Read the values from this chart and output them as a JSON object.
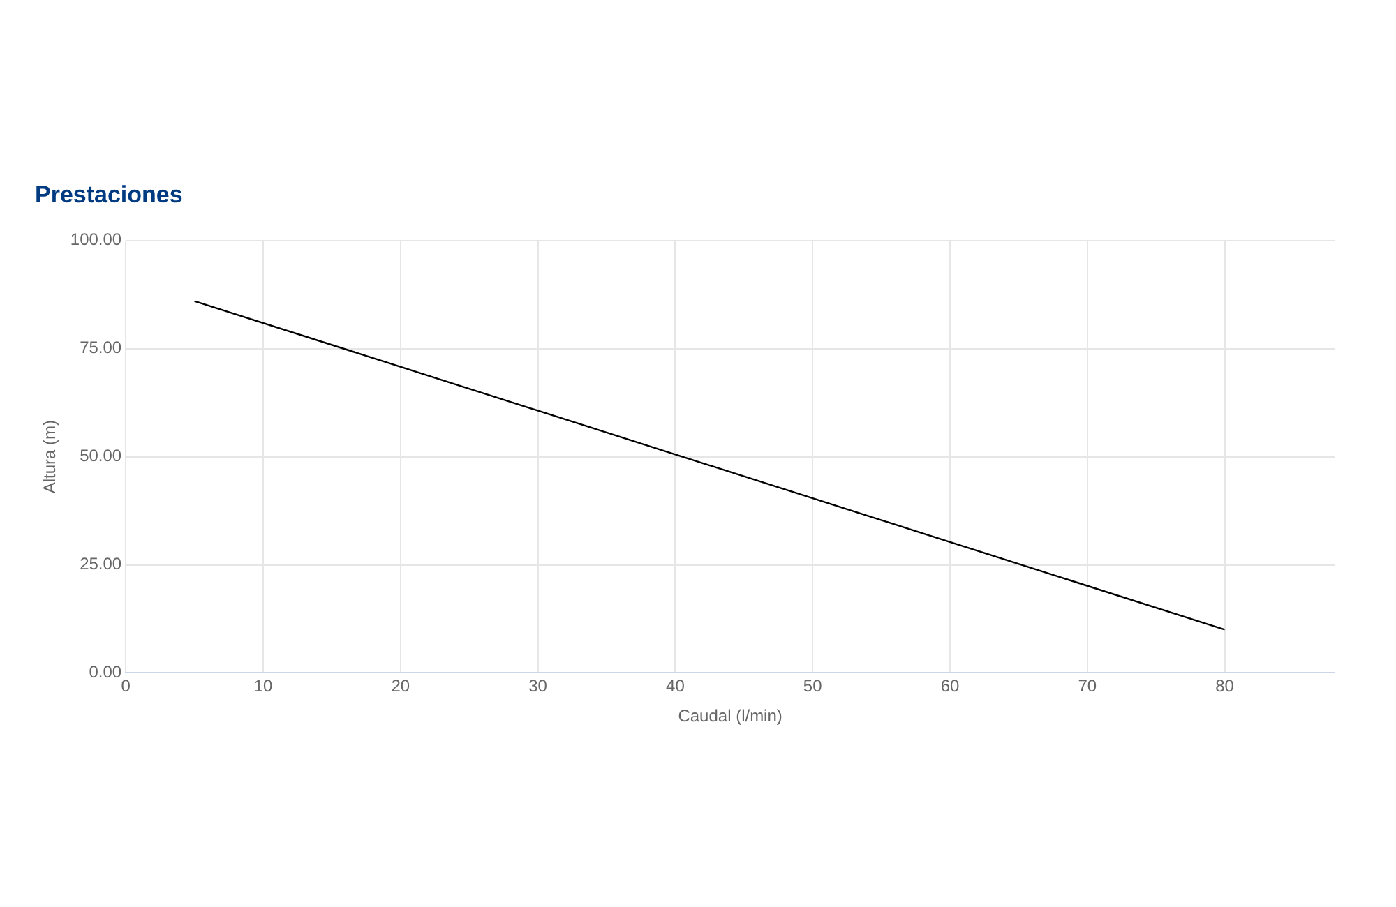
{
  "chart_data": {
    "type": "line",
    "title": "Prestaciones",
    "xlabel": "Caudal (l/min)",
    "ylabel": "Altura (m)",
    "x": [
      5,
      80
    ],
    "series": [
      {
        "color": "#000000",
        "values": [
          86,
          10
        ]
      }
    ],
    "xlim": [
      0,
      88
    ],
    "xticks": [
      0,
      10,
      20,
      30,
      40,
      50,
      60,
      70,
      80
    ],
    "ylim": [
      0,
      100
    ],
    "yticks": [
      {
        "value": 0,
        "label": "0.00"
      },
      {
        "value": 25,
        "label": "25.00"
      },
      {
        "value": 50,
        "label": "50.00"
      },
      {
        "value": 75,
        "label": "75.00"
      },
      {
        "value": 100,
        "label": "100.00"
      }
    ],
    "grid": true,
    "legend": false,
    "marker": "none",
    "line_style": "solid"
  }
}
